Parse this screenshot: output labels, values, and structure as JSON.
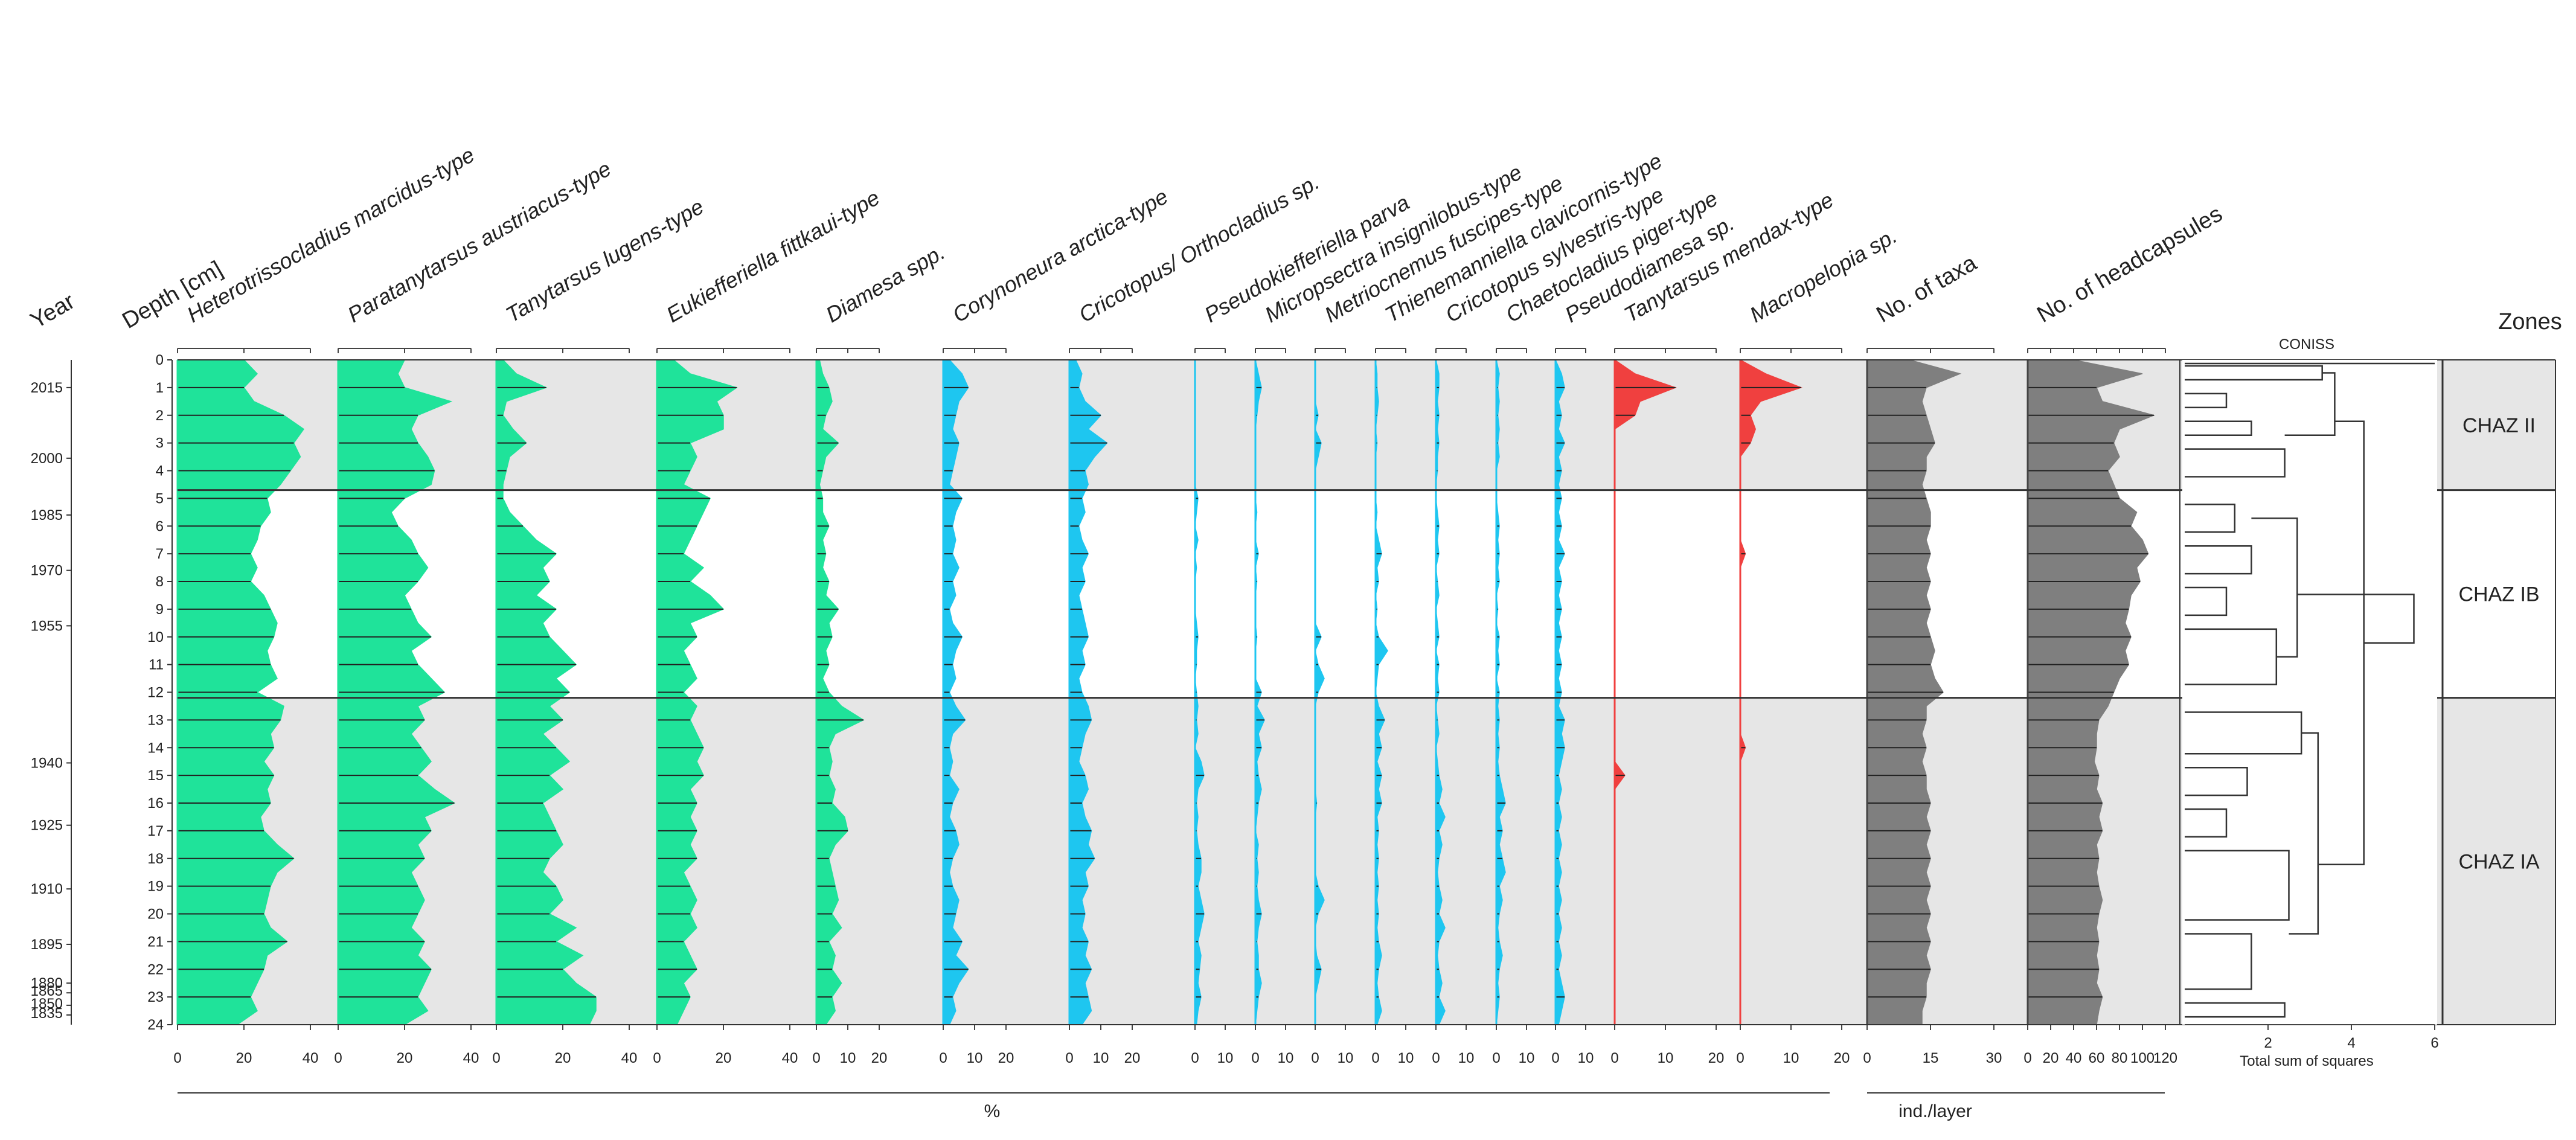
{
  "chart_data": {
    "type": "area",
    "title": "",
    "header": {
      "year": "Year",
      "depth": "Depth [cm]",
      "zones": "Zones",
      "coniss": "CONISS"
    },
    "depth_axis": {
      "label": "Depth [cm]",
      "min": 0,
      "max": 24,
      "ticks": [
        0,
        1,
        2,
        3,
        4,
        5,
        6,
        7,
        8,
        9,
        10,
        11,
        12,
        13,
        14,
        15,
        16,
        17,
        18,
        19,
        20,
        21,
        22,
        23,
        24
      ]
    },
    "year_axis": {
      "label": "Year",
      "labels": [
        {
          "year": "2015",
          "depth": 1
        },
        {
          "year": "2000",
          "depth": 3.55
        },
        {
          "year": "1985",
          "depth": 5.6
        },
        {
          "year": "1970",
          "depth": 7.6
        },
        {
          "year": "1955",
          "depth": 9.6
        },
        {
          "year": "1940",
          "depth": 14.55
        },
        {
          "year": "1925",
          "depth": 16.8
        },
        {
          "year": "1910",
          "depth": 19.1
        },
        {
          "year": "1895",
          "depth": 21.1
        },
        {
          "year": "1880",
          "depth": 22.5
        },
        {
          "year": "1865",
          "depth": 22.85
        },
        {
          "year": "1850",
          "depth": 23.3
        },
        {
          "year": "1835",
          "depth": 23.65
        }
      ]
    },
    "percent_label": "%",
    "ind_label": "ind./layer",
    "sample_depths": [
      0,
      0.5,
      1,
      1.5,
      2,
      2.5,
      3,
      3.5,
      4,
      4.5,
      5,
      5.5,
      6,
      6.5,
      7,
      7.5,
      8,
      8.5,
      9,
      9.5,
      10,
      10.5,
      11,
      11.5,
      12,
      12.5,
      13,
      13.5,
      14,
      14.5,
      15,
      15.5,
      16,
      16.5,
      17,
      17.5,
      18,
      18.5,
      19,
      19.5,
      20,
      20.5,
      21,
      21.5,
      22,
      22.5,
      23,
      23.5,
      24
    ],
    "series": [
      {
        "name": "Heterotrissocladius marcidus-type",
        "unit": "%",
        "max": 40,
        "ticks": [
          0,
          20,
          40
        ],
        "color": "#1fe39a",
        "values": [
          20,
          24,
          20,
          23,
          32,
          38,
          35,
          37,
          34,
          31,
          27,
          28,
          25,
          24,
          22,
          24,
          22,
          26,
          28,
          30,
          29,
          27,
          28,
          30,
          24,
          32,
          31,
          28,
          29,
          26,
          29,
          27,
          28,
          25,
          26,
          30,
          35,
          30,
          28,
          27,
          26,
          28,
          33,
          27,
          26,
          24,
          22,
          24,
          18
        ]
      },
      {
        "name": "Paratanytarsus austriacus-type",
        "unit": "%",
        "max": 40,
        "ticks": [
          0,
          20,
          40
        ],
        "color": "#1fe39a",
        "values": [
          20,
          18,
          20,
          34,
          24,
          22,
          24,
          27,
          29,
          28,
          20,
          16,
          18,
          22,
          24,
          27,
          24,
          20,
          22,
          24,
          28,
          22,
          24,
          28,
          32,
          24,
          26,
          22,
          25,
          28,
          24,
          29,
          35,
          26,
          28,
          24,
          26,
          22,
          24,
          26,
          24,
          22,
          26,
          24,
          28,
          26,
          24,
          27,
          20
        ]
      },
      {
        "name": "Tanytarsus lugens-type",
        "unit": "%",
        "max": 40,
        "ticks": [
          0,
          20,
          40
        ],
        "color": "#1fe39a",
        "values": [
          2,
          6,
          15,
          3,
          2,
          5,
          9,
          4,
          3,
          2,
          2,
          4,
          8,
          12,
          18,
          14,
          16,
          12,
          18,
          14,
          16,
          20,
          24,
          18,
          22,
          16,
          20,
          14,
          18,
          22,
          16,
          20,
          14,
          16,
          18,
          20,
          16,
          14,
          18,
          20,
          16,
          24,
          18,
          26,
          20,
          24,
          30,
          30,
          28
        ]
      },
      {
        "name": "Eukiefferiella fittkaui-type",
        "unit": "%",
        "max": 40,
        "ticks": [
          0,
          20,
          40
        ],
        "color": "#1fe39a",
        "values": [
          5,
          10,
          24,
          18,
          20,
          20,
          10,
          12,
          10,
          8,
          16,
          14,
          12,
          10,
          8,
          14,
          10,
          16,
          20,
          10,
          12,
          8,
          10,
          12,
          8,
          12,
          10,
          12,
          14,
          12,
          14,
          10,
          12,
          10,
          12,
          10,
          12,
          8,
          10,
          12,
          10,
          12,
          8,
          10,
          12,
          8,
          10,
          8,
          6
        ]
      },
      {
        "name": "Diamesa spp.",
        "unit": "%",
        "max": 20,
        "ticks": [
          0,
          10,
          20
        ],
        "color": "#1fe39a",
        "values": [
          1,
          2,
          4,
          5,
          3,
          2,
          7,
          3,
          2,
          1,
          2,
          2,
          4,
          2,
          3,
          2,
          4,
          3,
          7,
          4,
          5,
          3,
          4,
          2,
          4,
          8,
          15,
          6,
          4,
          5,
          4,
          6,
          5,
          9,
          10,
          6,
          4,
          5,
          6,
          7,
          5,
          8,
          4,
          6,
          5,
          8,
          5,
          6,
          3
        ]
      },
      {
        "name": "Corynoneura arctica-type",
        "unit": "%",
        "max": 20,
        "ticks": [
          0,
          10,
          20
        ],
        "color": "#1ec6f0",
        "values": [
          2,
          6,
          8,
          5,
          4,
          3,
          5,
          4,
          3,
          2,
          6,
          4,
          3,
          4,
          3,
          5,
          3,
          4,
          2,
          3,
          6,
          4,
          3,
          4,
          2,
          4,
          7,
          3,
          2,
          3,
          2,
          5,
          3,
          2,
          4,
          5,
          3,
          2,
          3,
          5,
          4,
          3,
          6,
          4,
          8,
          5,
          3,
          4,
          2
        ]
      },
      {
        "name": "Cricotopus/ Orthocladius sp.",
        "unit": "%",
        "max": 20,
        "ticks": [
          0,
          10,
          20
        ],
        "color": "#1ec6f0",
        "values": [
          2,
          4,
          3,
          5,
          10,
          6,
          12,
          8,
          5,
          6,
          4,
          5,
          3,
          4,
          6,
          4,
          5,
          3,
          4,
          5,
          6,
          4,
          5,
          3,
          4,
          6,
          7,
          5,
          4,
          3,
          5,
          6,
          4,
          5,
          7,
          6,
          8,
          5,
          6,
          4,
          5,
          4,
          6,
          5,
          7,
          5,
          6,
          7,
          4
        ]
      },
      {
        "name": "Pseudokiefferiella parva",
        "unit": "%",
        "max": 10,
        "ticks": [
          0,
          10
        ],
        "color": "#1ec6f0",
        "values": [
          0,
          0,
          0,
          0,
          0,
          0,
          0,
          0,
          0,
          0,
          1,
          0.5,
          0,
          1,
          0,
          0.5,
          0,
          0,
          0,
          0.5,
          1,
          0.5,
          0.5,
          0,
          0.5,
          1,
          0.5,
          1,
          0,
          2,
          3,
          1,
          0.5,
          1,
          0.5,
          1,
          2,
          2,
          1,
          2,
          3,
          2,
          1,
          2,
          1.5,
          1,
          2,
          1,
          0.5
        ]
      },
      {
        "name": "Micropsectra insignilobus-type",
        "unit": "%",
        "max": 10,
        "ticks": [
          0,
          10
        ],
        "color": "#1ec6f0",
        "values": [
          0,
          1,
          2,
          1,
          0.5,
          0,
          0,
          0,
          0,
          0,
          0,
          0.5,
          0,
          0,
          1,
          0,
          0.5,
          0,
          0,
          0,
          0.5,
          0,
          0,
          0,
          2,
          0.5,
          3,
          1,
          2,
          0.5,
          1,
          2,
          1,
          0.5,
          0,
          1,
          0.5,
          1,
          0.5,
          1,
          2,
          1,
          0.5,
          1,
          1,
          2,
          1,
          0.5,
          0
        ]
      },
      {
        "name": "Metriocnemus fuscipes-type",
        "unit": "%",
        "max": 10,
        "ticks": [
          0,
          10
        ],
        "color": "#1ec6f0",
        "values": [
          0,
          0,
          0,
          0,
          1,
          0,
          2,
          1,
          0,
          0,
          0,
          0,
          0,
          0,
          0,
          0,
          0,
          0,
          0,
          0,
          2,
          0,
          1,
          3,
          1,
          0,
          0,
          0,
          0,
          0,
          0,
          0,
          0.5,
          0,
          0,
          0,
          0,
          0,
          1,
          3,
          1,
          0,
          0,
          0.5,
          2,
          1,
          0,
          0,
          0
        ]
      },
      {
        "name": "Thienemanniella clavicornis-type",
        "unit": "%",
        "max": 10,
        "ticks": [
          0,
          10
        ],
        "color": "#1ec6f0",
        "values": [
          0,
          0.5,
          0.5,
          1,
          0.5,
          0,
          0.5,
          0,
          0,
          0,
          0,
          0.5,
          0,
          1,
          2,
          0.5,
          1,
          0,
          0.5,
          0,
          1,
          4,
          1,
          0.5,
          0,
          1,
          3,
          1,
          2,
          0.5,
          2,
          1,
          2,
          0.5,
          1,
          0.5,
          1,
          0.5,
          1,
          0.5,
          1,
          0.5,
          1,
          2,
          1,
          0.5,
          1,
          2,
          0.5
        ]
      },
      {
        "name": "Cricotopus sylvestris-type",
        "unit": "%",
        "max": 10,
        "ticks": [
          0,
          10
        ],
        "color": "#1ec6f0",
        "values": [
          0,
          1,
          1,
          0.5,
          1,
          0.5,
          1,
          0.5,
          0.5,
          0,
          0,
          0.5,
          1,
          0.5,
          1,
          0,
          0.5,
          1,
          0,
          0.5,
          1,
          0,
          1,
          0.5,
          1,
          0,
          0.5,
          1,
          0,
          0.5,
          1,
          2,
          1,
          3,
          1,
          2,
          1,
          0.5,
          1,
          2,
          1,
          3,
          1,
          0.5,
          1,
          2,
          1,
          3,
          1
        ]
      },
      {
        "name": "Chaetocladius piger-type",
        "unit": "%",
        "max": 10,
        "ticks": [
          0,
          10
        ],
        "color": "#1ec6f0",
        "values": [
          0,
          1,
          0.5,
          1,
          0.5,
          1,
          0.5,
          1,
          0,
          0,
          0,
          0.5,
          1,
          0.5,
          1,
          0.5,
          1,
          0,
          0.5,
          0,
          1,
          0.5,
          1,
          0,
          1,
          0.5,
          1,
          0.5,
          1,
          0.5,
          1,
          2,
          3,
          1,
          2,
          1,
          2,
          3,
          1,
          2,
          1,
          0.5,
          1,
          2,
          1,
          0.5,
          1,
          0.5,
          0
        ]
      },
      {
        "name": "Pseudodiamesa sp.",
        "unit": "%",
        "max": 10,
        "ticks": [
          0,
          10
        ],
        "color": "#1ec6f0",
        "values": [
          0,
          2,
          3,
          1,
          2,
          1,
          3,
          1,
          2,
          1,
          2,
          1,
          2,
          1,
          3,
          1,
          2,
          1,
          2,
          1,
          2,
          1,
          2,
          1,
          2,
          1,
          3,
          2,
          3,
          2,
          1,
          2,
          1,
          2,
          1,
          2,
          1,
          2,
          1,
          2,
          1,
          2,
          1,
          2,
          1,
          2,
          3,
          2,
          1
        ]
      },
      {
        "name": "Tanytarsus mendax-type",
        "unit": "%",
        "max": 20,
        "ticks": [
          0,
          10,
          20
        ],
        "color": "#f0403f",
        "values": [
          0,
          4,
          12,
          5,
          4,
          0,
          0,
          0,
          0,
          0,
          0,
          0,
          0,
          0,
          0,
          0,
          0,
          0,
          0,
          0,
          0,
          0,
          0,
          0,
          0,
          0,
          0,
          0,
          0,
          0,
          2,
          0,
          0,
          0,
          0,
          0,
          0,
          0,
          0,
          0,
          0,
          0,
          0,
          0,
          0,
          0,
          0,
          0,
          0
        ]
      },
      {
        "name": "Macropelopia sp.",
        "unit": "%",
        "max": 20,
        "ticks": [
          0,
          10,
          20
        ],
        "color": "#f0403f",
        "values": [
          0,
          5,
          12,
          4,
          2,
          3,
          2,
          0,
          0,
          0,
          0,
          0,
          0,
          0,
          1,
          0,
          0,
          0,
          0,
          0,
          0,
          0,
          0,
          0,
          0,
          0,
          0,
          0,
          1,
          0,
          0,
          0,
          0,
          0,
          0,
          0,
          0,
          0,
          0,
          0,
          0,
          0,
          0,
          0,
          0,
          0,
          0,
          0,
          0
        ]
      },
      {
        "name": "No. of taxa",
        "unit": "ind./layer",
        "max": 30,
        "ticks": [
          0,
          15,
          30
        ],
        "color": "#7f7f7f",
        "values": [
          10,
          22,
          14,
          13,
          14,
          15,
          16,
          14,
          14,
          13,
          14,
          15,
          15,
          14,
          15,
          14,
          15,
          14,
          15,
          14,
          15,
          16,
          15,
          16,
          18,
          14,
          14,
          13,
          14,
          13,
          14,
          14,
          15,
          14,
          15,
          14,
          15,
          14,
          15,
          14,
          15,
          14,
          15,
          14,
          15,
          14,
          14,
          13,
          13
        ]
      },
      {
        "name": "No. of headcapsules",
        "unit": "ind./layer",
        "max": 120,
        "ticks": [
          0,
          20,
          40,
          60,
          80,
          100,
          120
        ],
        "color": "#7f7f7f",
        "values": [
          40,
          100,
          60,
          65,
          110,
          80,
          75,
          80,
          70,
          75,
          80,
          95,
          90,
          100,
          105,
          95,
          98,
          90,
          88,
          85,
          90,
          85,
          88,
          80,
          75,
          70,
          62,
          60,
          60,
          58,
          62,
          60,
          65,
          62,
          65,
          60,
          62,
          60,
          62,
          65,
          62,
          60,
          62,
          60,
          62,
          60,
          65,
          62,
          60
        ]
      }
    ],
    "coniss": {
      "title": "CONISS",
      "xlabel": "Total sum of squares",
      "xlim": [
        0,
        6
      ],
      "ticks": [
        2,
        4,
        6
      ]
    },
    "zones": [
      {
        "name": "CHAZ II",
        "from": 0,
        "to": 4.7
      },
      {
        "name": "CHAZ IB",
        "from": 4.7,
        "to": 12.2
      },
      {
        "name": "CHAZ IA",
        "from": 12.2,
        "to": 24
      }
    ]
  }
}
